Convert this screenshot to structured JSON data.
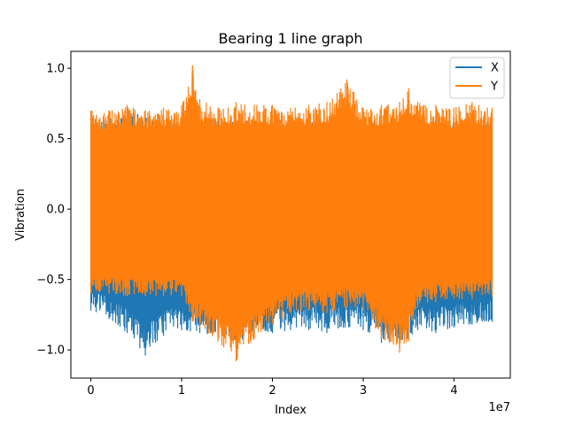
{
  "chart_data": {
    "type": "line",
    "title": "Bearing 1 line graph",
    "xlabel": "Index",
    "ylabel": "Vibration",
    "x_offset_text": "1e7",
    "xlim": [
      -2200000,
      46200000
    ],
    "ylim": [
      -1.2,
      1.12
    ],
    "x_ticks": [
      0,
      10000000,
      20000000,
      30000000,
      40000000
    ],
    "x_tick_labels": [
      "0",
      "1",
      "2",
      "3",
      "4"
    ],
    "y_ticks": [
      -1.0,
      -0.5,
      0.0,
      0.5,
      1.0
    ],
    "y_tick_labels": [
      "−1.0",
      "−0.5",
      "0.0",
      "0.5",
      "1.0"
    ],
    "x_range": [
      0,
      44200000
    ],
    "legend_position": "top-right",
    "grid": false,
    "series": [
      {
        "name": "X",
        "color": "#1f77b4",
        "envelope": {
          "x": [
            0,
            2000000,
            4000000,
            6000000,
            8000000,
            10000000,
            12000000,
            14000000,
            16000000,
            18000000,
            20000000,
            22000000,
            24000000,
            26000000,
            28000000,
            30000000,
            32000000,
            34000000,
            36000000,
            38000000,
            40000000,
            42000000,
            44200000
          ],
          "upper": [
            0.62,
            0.64,
            0.7,
            0.66,
            0.6,
            0.62,
            0.64,
            0.63,
            0.62,
            0.64,
            0.62,
            0.61,
            0.63,
            0.62,
            0.64,
            0.62,
            0.61,
            0.62,
            0.64,
            0.63,
            0.62,
            0.6,
            0.64
          ],
          "lower": [
            -0.72,
            -0.78,
            -0.88,
            -1.04,
            -0.9,
            -0.86,
            -0.88,
            -0.9,
            -0.94,
            -0.9,
            -0.88,
            -0.86,
            -0.86,
            -0.88,
            -0.84,
            -0.86,
            -0.95,
            -0.98,
            -0.86,
            -0.88,
            -0.84,
            -0.82,
            -0.8
          ]
        }
      },
      {
        "name": "Y",
        "color": "#ff7f0e",
        "envelope": {
          "x": [
            0,
            2000000,
            4000000,
            6000000,
            8000000,
            10000000,
            11200000,
            12000000,
            14000000,
            16000000,
            18000000,
            20000000,
            22000000,
            24000000,
            26000000,
            28200000,
            30000000,
            32000000,
            34000000,
            35000000,
            36000000,
            38000000,
            40000000,
            42000000,
            44200000
          ],
          "upper": [
            0.7,
            0.7,
            0.74,
            0.7,
            0.72,
            0.74,
            1.02,
            0.78,
            0.72,
            0.76,
            0.74,
            0.74,
            0.72,
            0.74,
            0.76,
            0.92,
            0.72,
            0.74,
            0.76,
            0.86,
            0.76,
            0.74,
            0.72,
            0.76,
            0.72
          ],
          "lower": [
            -0.6,
            -0.6,
            -0.62,
            -0.62,
            -0.62,
            -0.62,
            -0.8,
            -0.84,
            -0.94,
            -1.08,
            -0.92,
            -0.82,
            -0.74,
            -0.72,
            -0.74,
            -0.7,
            -0.72,
            -0.92,
            -1.02,
            -0.94,
            -0.7,
            -0.66,
            -0.64,
            -0.64,
            -0.62
          ]
        }
      }
    ]
  }
}
